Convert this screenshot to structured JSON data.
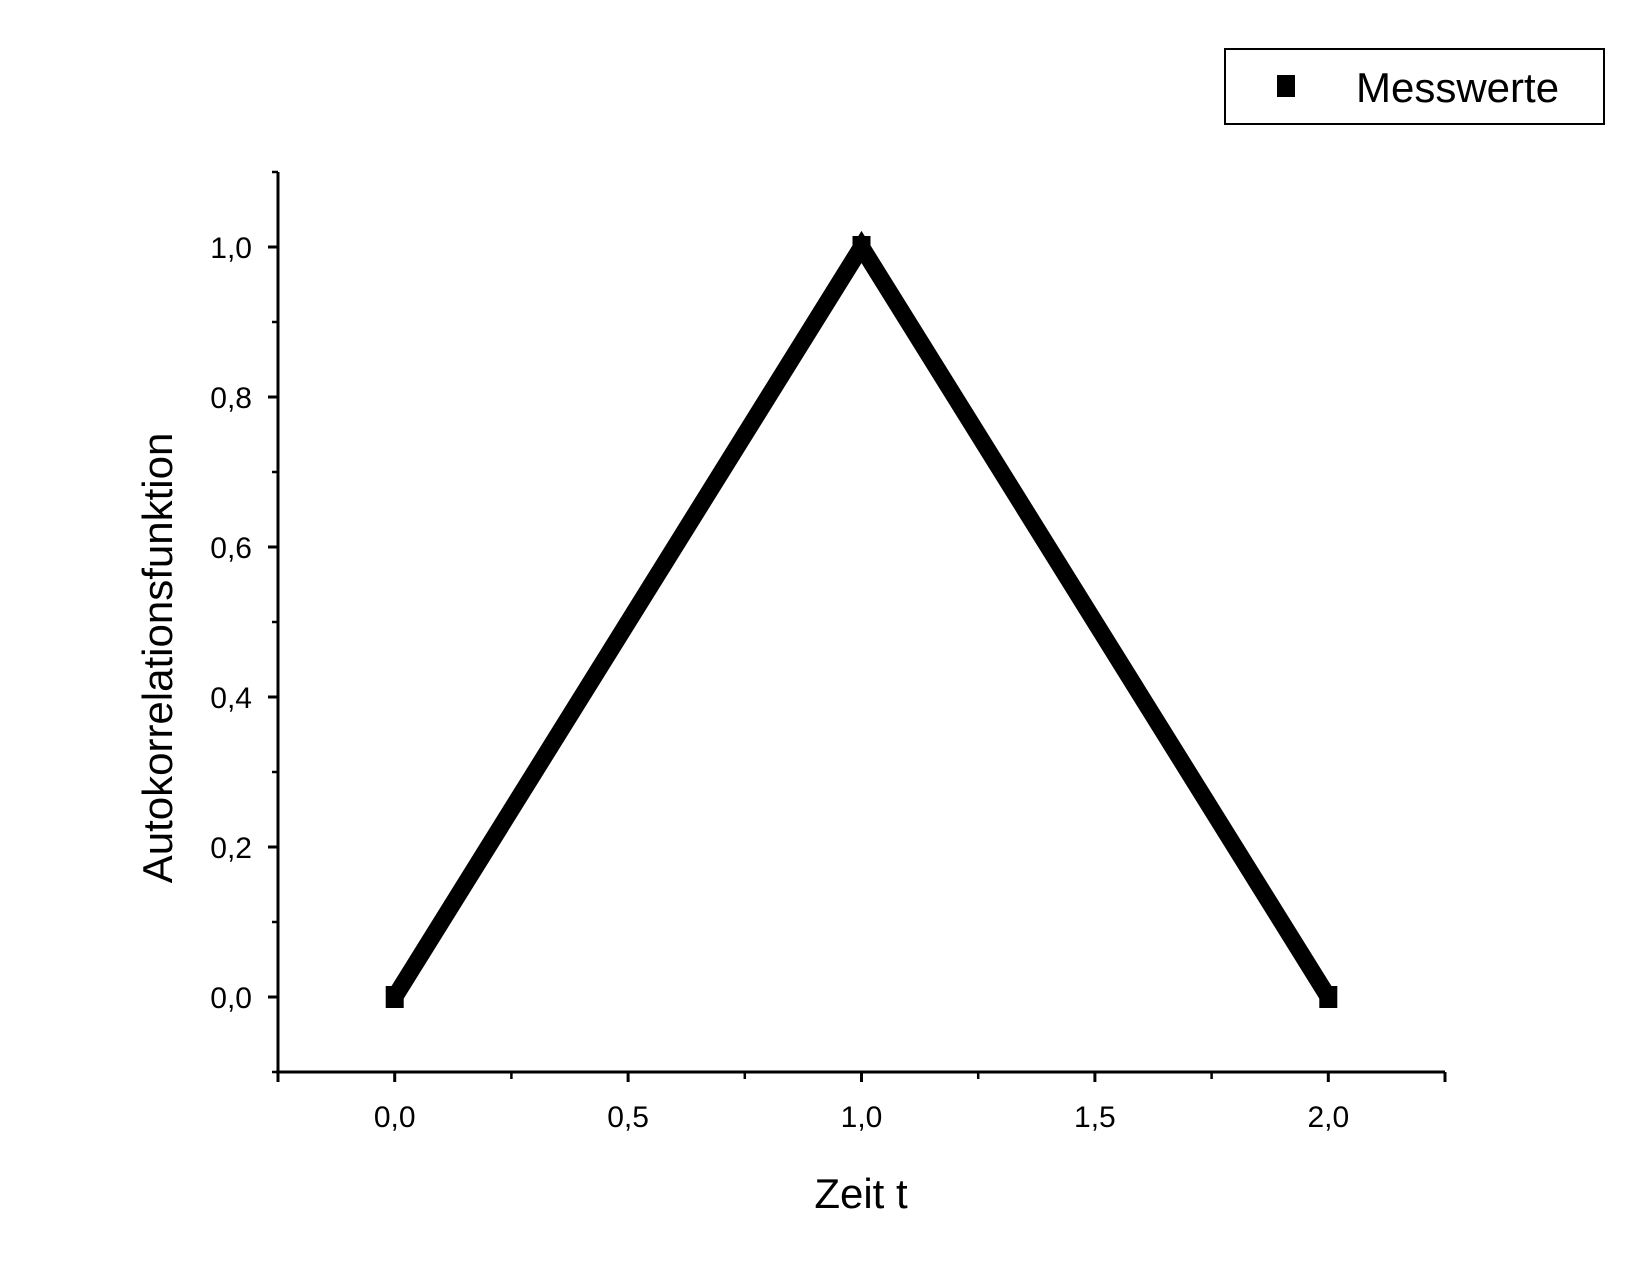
{
  "chart_data": {
    "type": "line",
    "xlabel": "Zeit t",
    "ylabel": "Autokorrelationsfunktion",
    "xlim": [
      -0.25,
      2.25
    ],
    "ylim": [
      -0.1,
      1.1
    ],
    "x_ticks": [
      "0,0",
      "0,5",
      "1,0",
      "1,5",
      "2,0"
    ],
    "y_ticks": [
      "0,0",
      "0,2",
      "0,4",
      "0,6",
      "0,8",
      "1,0"
    ],
    "legend_position": "top-right",
    "series": [
      {
        "name": "Messwerte",
        "x": [
          0.0,
          1.0,
          2.0
        ],
        "y": [
          0.0,
          1.0,
          0.0
        ],
        "color": "#000000",
        "marker": "square"
      }
    ]
  }
}
